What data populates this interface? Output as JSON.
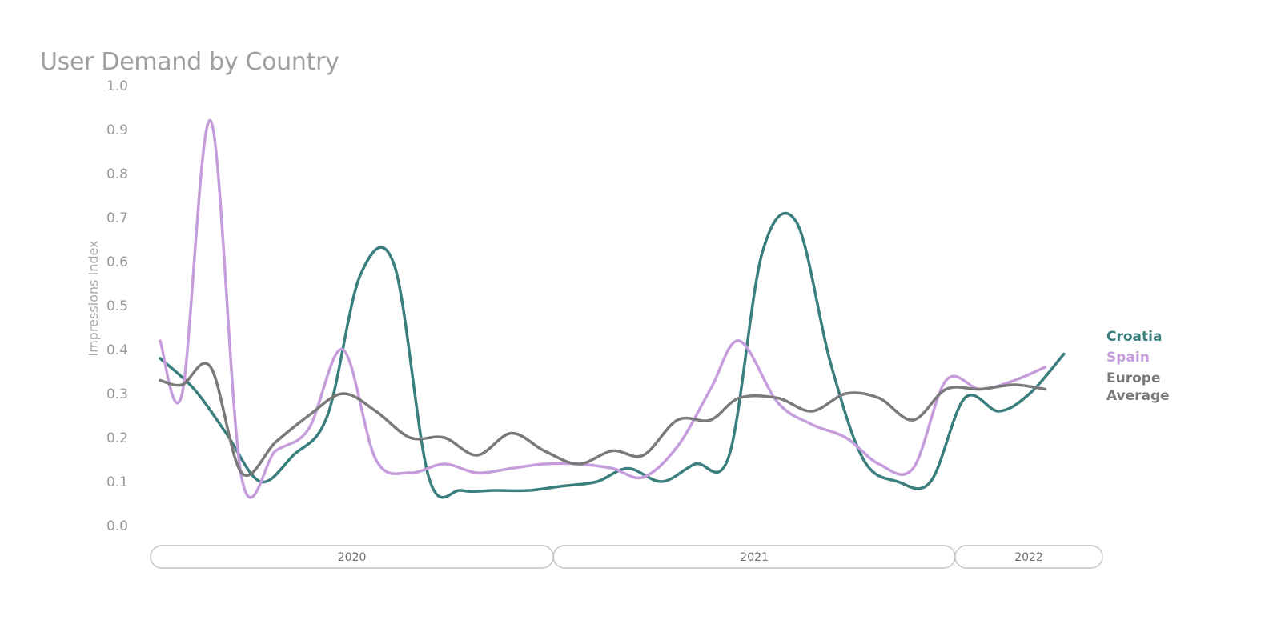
{
  "chart_data": {
    "type": "line",
    "title": "User Demand by Country",
    "ylabel": "Impressions Index",
    "xlabel": "",
    "ylim": [
      0,
      1
    ],
    "yticks": [
      "0.0",
      "0.1",
      "0.2",
      "0.3",
      "0.4",
      "0.5",
      "0.6",
      "0.7",
      "0.8",
      "0.9",
      "1.0"
    ],
    "x_range": [
      "2020-01",
      "2022-05"
    ],
    "year_bands": [
      {
        "label": "2020",
        "start": "2020-01",
        "end": "2021-01"
      },
      {
        "label": "2021",
        "start": "2021-01",
        "end": "2022-01"
      },
      {
        "label": "2022",
        "start": "2022-01",
        "end": "2022-05"
      }
    ],
    "legend": "right",
    "grid": false,
    "series": [
      {
        "name": "Croatia",
        "color": "#3a7f7d",
        "legend_lines": [
          "Croatia"
        ],
        "points": [
          [
            "2020-01",
            0.38
          ],
          [
            "2020-02",
            0.31
          ],
          [
            "2020-03",
            0.21
          ],
          [
            "2020-04",
            0.1
          ],
          [
            "2020-05",
            0.16
          ],
          [
            "2020-06",
            0.25
          ],
          [
            "2020-07",
            0.57
          ],
          [
            "2020-08",
            0.59
          ],
          [
            "2020-09",
            0.11
          ],
          [
            "2020-10",
            0.08
          ],
          [
            "2020-11",
            0.08
          ],
          [
            "2020-12",
            0.08
          ],
          [
            "2021-01",
            0.09
          ],
          [
            "2021-02",
            0.1
          ],
          [
            "2021-03",
            0.13
          ],
          [
            "2021-04",
            0.1
          ],
          [
            "2021-05",
            0.14
          ],
          [
            "2021-06",
            0.16
          ],
          [
            "2021-07",
            0.62
          ],
          [
            "2021-08",
            0.69
          ],
          [
            "2021-09",
            0.37
          ],
          [
            "2021-10",
            0.15
          ],
          [
            "2021-11",
            0.1
          ],
          [
            "2021-12",
            0.1
          ],
          [
            "2022-01",
            0.29
          ],
          [
            "2022-02",
            0.26
          ],
          [
            "2022-03",
            0.3
          ],
          [
            "2022-04",
            0.39
          ]
        ]
      },
      {
        "name": "Spain",
        "color": "#c59ddd",
        "legend_lines": [
          "Spain"
        ],
        "points": [
          [
            "2020-01",
            0.42
          ],
          [
            "2020-01-21",
            0.3
          ],
          [
            "2020-02-16",
            0.92
          ],
          [
            "2020-03-15",
            0.11
          ],
          [
            "2020-04-15",
            0.17
          ],
          [
            "2020-05-15",
            0.22
          ],
          [
            "2020-06-15",
            0.4
          ],
          [
            "2020-07-15",
            0.15
          ],
          [
            "2020-08-15",
            0.12
          ],
          [
            "2020-09-15",
            0.14
          ],
          [
            "2020-10-15",
            0.12
          ],
          [
            "2020-11-15",
            0.13
          ],
          [
            "2020-12-15",
            0.14
          ],
          [
            "2021-01-15",
            0.14
          ],
          [
            "2021-02-15",
            0.13
          ],
          [
            "2021-03-15",
            0.11
          ],
          [
            "2021-04-15",
            0.18
          ],
          [
            "2021-05-15",
            0.31
          ],
          [
            "2021-06-10",
            0.42
          ],
          [
            "2021-07-15",
            0.28
          ],
          [
            "2021-08-15",
            0.23
          ],
          [
            "2021-09-15",
            0.2
          ],
          [
            "2021-10-15",
            0.14
          ],
          [
            "2021-11-15",
            0.13
          ],
          [
            "2021-12-15",
            0.33
          ],
          [
            "2022-01-15",
            0.31
          ],
          [
            "2022-02-15",
            0.33
          ],
          [
            "2022-03-15",
            0.36
          ]
        ]
      },
      {
        "name": "Europe Average",
        "color": "#7a7a7a",
        "legend_lines": [
          "Europe",
          "Average"
        ],
        "points": [
          [
            "2020-01",
            0.33
          ],
          [
            "2020-01-21",
            0.32
          ],
          [
            "2020-02-16",
            0.36
          ],
          [
            "2020-03-15",
            0.12
          ],
          [
            "2020-04-15",
            0.19
          ],
          [
            "2020-05-15",
            0.25
          ],
          [
            "2020-06-15",
            0.3
          ],
          [
            "2020-07-15",
            0.26
          ],
          [
            "2020-08-15",
            0.2
          ],
          [
            "2020-09-15",
            0.2
          ],
          [
            "2020-10-15",
            0.16
          ],
          [
            "2020-11-15",
            0.21
          ],
          [
            "2020-12-15",
            0.17
          ],
          [
            "2021-01-15",
            0.14
          ],
          [
            "2021-02-15",
            0.17
          ],
          [
            "2021-03-15",
            0.16
          ],
          [
            "2021-04-15",
            0.24
          ],
          [
            "2021-05-15",
            0.24
          ],
          [
            "2021-06-10",
            0.29
          ],
          [
            "2021-07-15",
            0.29
          ],
          [
            "2021-08-15",
            0.26
          ],
          [
            "2021-09-15",
            0.3
          ],
          [
            "2021-10-15",
            0.29
          ],
          [
            "2021-11-15",
            0.24
          ],
          [
            "2021-12-15",
            0.31
          ],
          [
            "2022-01-15",
            0.31
          ],
          [
            "2022-02-15",
            0.32
          ],
          [
            "2022-03-15",
            0.31
          ]
        ]
      }
    ]
  }
}
